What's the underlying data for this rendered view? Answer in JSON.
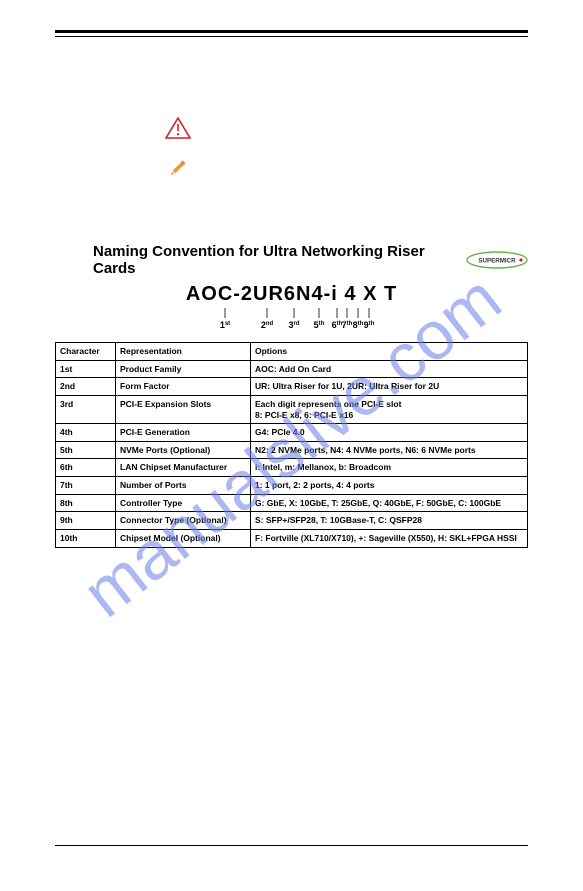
{
  "watermark": "manualslive.com",
  "naming": {
    "title": "Naming Convention for Ultra Networking Riser Cards",
    "product_code": "AOC-2UR6N4-i 4 X T",
    "ordinals": [
      "1",
      "2",
      "3",
      "5",
      "6",
      "7",
      "8",
      "9"
    ],
    "ordinal_suffixes": [
      "st",
      "nd",
      "rd",
      "th",
      "th",
      "th",
      "th",
      "th"
    ]
  },
  "table": {
    "headers": [
      "Character",
      "Representation",
      "Options"
    ],
    "rows": [
      {
        "char": "1st",
        "rep": "Product Family",
        "opt": "AOC: Add On Card"
      },
      {
        "char": "2nd",
        "rep": "Form Factor",
        "opt": "UR: Ultra Riser for 1U, 2UR: Ultra Riser for 2U"
      },
      {
        "char": "3rd",
        "rep": "PCI-E Expansion Slots",
        "opt": "Each digit represents one PCI-E slot\n8: PCI-E x8, 6: PCI-E x16"
      },
      {
        "char": "4th",
        "rep": "PCI-E Generation",
        "opt": "G4: PCIe 4.0"
      },
      {
        "char": "5th",
        "rep": "NVMe Ports (Optional)",
        "opt": "N2: 2 NVMe ports, N4: 4 NVMe ports, N6: 6 NVMe ports"
      },
      {
        "char": "6th",
        "rep": "LAN Chipset Manufacturer",
        "opt": "i: Intel, m: Mellanox, b: Broadcom"
      },
      {
        "char": "7th",
        "rep": "Number of Ports",
        "opt": "1: 1 port, 2: 2 ports, 4: 4 ports"
      },
      {
        "char": "8th",
        "rep": "Controller Type",
        "opt": "G: GbE, X: 10GbE, T: 25GbE, Q: 40GbE, F: 50GbE, C: 100GbE"
      },
      {
        "char": "9th",
        "rep": "Connector Type (Optional)",
        "opt": "S: SFP+/SFP28, T: 10GBase-T, C: QSFP28"
      },
      {
        "char": "10th",
        "rep": "Chipset Model (Optional)",
        "opt": "F: Fortville (XL710/X710), +: Sageville (X550), H: SKL+FPGA HSSI"
      }
    ]
  },
  "colors": {
    "watermark": "#6b7fe8",
    "warning_red": "#d32020",
    "pencil_body": "#e8a838",
    "pencil_tip": "#e88f38",
    "logo_green": "#6ab04c",
    "logo_text": "#333333"
  }
}
